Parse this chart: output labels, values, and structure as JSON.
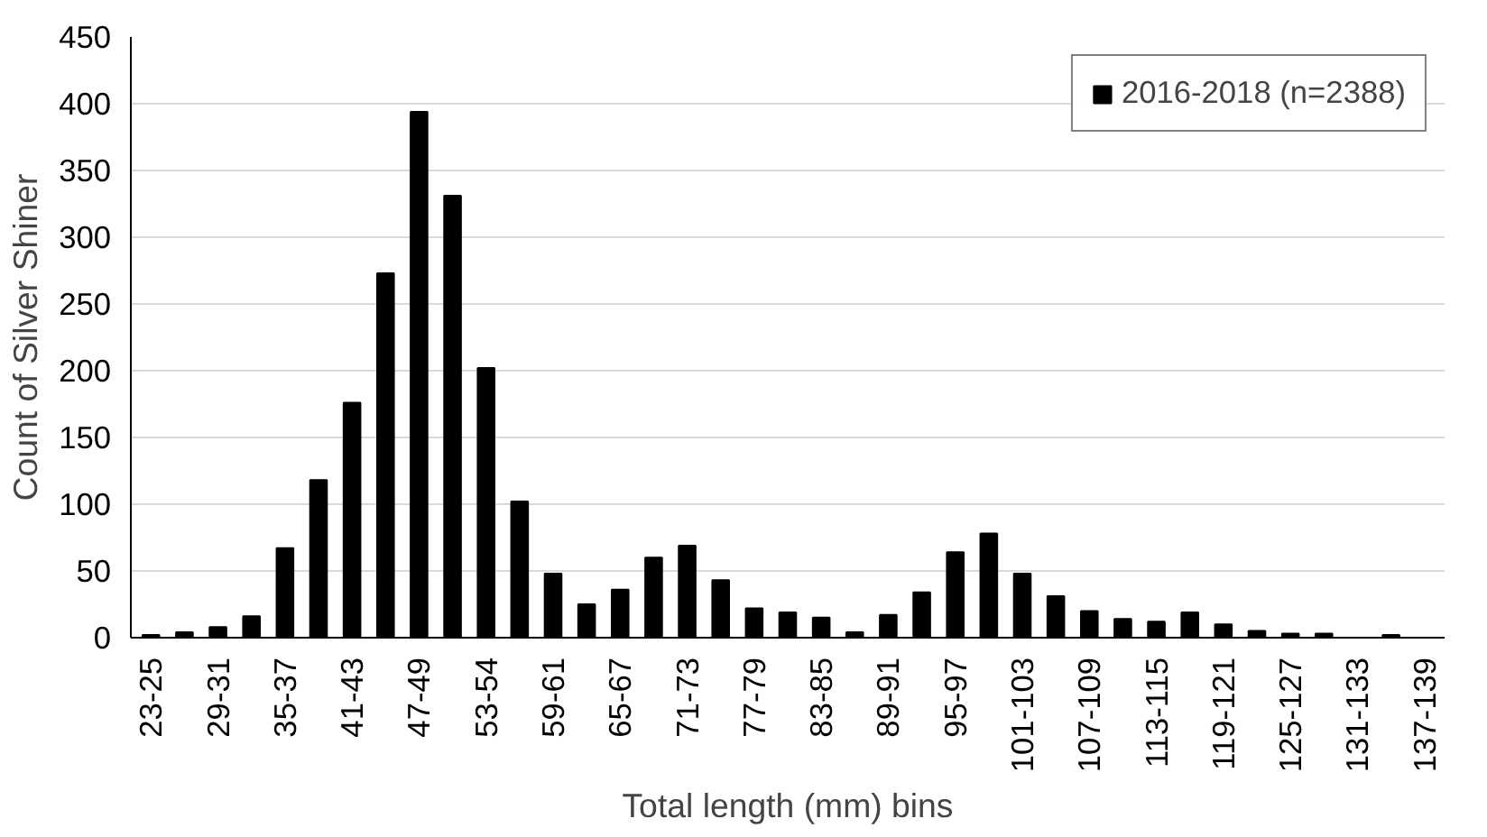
{
  "chart_data": {
    "type": "bar",
    "xlabel": "Total length (mm) bins",
    "ylabel": "Count of Silver Shiner",
    "categories": [
      "23-25",
      null,
      "29-31",
      null,
      "35-37",
      null,
      "41-43",
      null,
      "47-49",
      null,
      "53-54",
      null,
      "59-61",
      null,
      "65-67",
      null,
      "71-73",
      null,
      "77-79",
      null,
      "83-85",
      null,
      "89-91",
      null,
      "95-97",
      null,
      "101-103",
      null,
      "107-109",
      null,
      "113-115",
      null,
      "119-121",
      null,
      "125-127",
      null,
      "131-133",
      null,
      "137-139"
    ],
    "series": [
      {
        "name": "2016-2018 (n=2388)",
        "color": "#000000",
        "values": [
          2,
          4,
          8,
          16,
          67,
          118,
          176,
          273,
          394,
          331,
          202,
          102,
          48,
          25,
          36,
          60,
          69,
          43,
          22,
          19,
          15,
          4,
          17,
          34,
          64,
          78,
          48,
          31,
          20,
          14,
          12,
          19,
          10,
          5,
          3,
          3,
          0,
          2,
          0
        ]
      }
    ],
    "ylim": [
      0,
      450
    ],
    "yticks": [
      0,
      50,
      100,
      150,
      200,
      250,
      300,
      350,
      400,
      450
    ],
    "grid": "y",
    "legend": "top right"
  }
}
